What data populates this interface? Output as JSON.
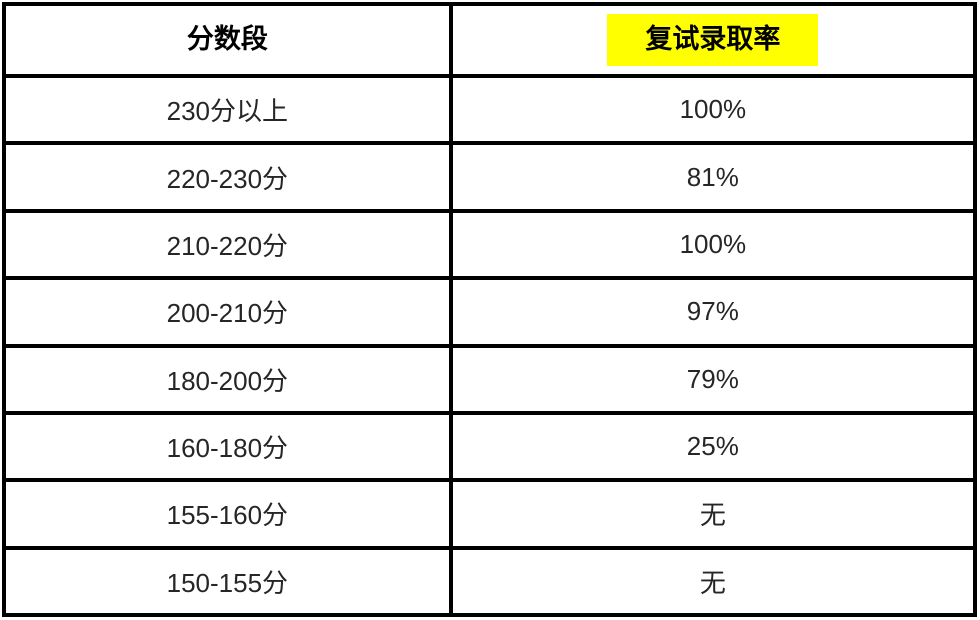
{
  "page": {
    "background": "#ffffff"
  },
  "table": {
    "columns": [
      {
        "key": "range",
        "label": "分数段",
        "highlight": false
      },
      {
        "key": "rate",
        "label": "复试录取率",
        "highlight": true
      }
    ],
    "rows": [
      [
        "230分以上",
        "100%"
      ],
      [
        "220-230分",
        "81%"
      ],
      [
        "210-220分",
        "100%"
      ],
      [
        "200-210分",
        "97%"
      ],
      [
        "180-200分",
        "79%"
      ],
      [
        "160-180分",
        "25%"
      ],
      [
        "155-160分",
        "无"
      ],
      [
        "150-155分",
        "无"
      ]
    ],
    "colors": {
      "border": "#000000",
      "body_text": "#262626",
      "header_text": "#000000",
      "highlight_bg": "#ffff00"
    }
  },
  "chart_data": {
    "type": "table",
    "columns": [
      "分数段",
      "复试录取率"
    ],
    "rows": [
      {
        "分数段": "230分以上",
        "复试录取率": "100%"
      },
      {
        "分数段": "220-230分",
        "复试录取率": "81%"
      },
      {
        "分数段": "210-220分",
        "复试录取率": "100%"
      },
      {
        "分数段": "200-210分",
        "复试录取率": "97%"
      },
      {
        "分数段": "180-200分",
        "复试录取率": "79%"
      },
      {
        "分数段": "160-180分",
        "复试录取率": "25%"
      },
      {
        "分数段": "155-160分",
        "复试录取率": "无"
      },
      {
        "分数段": "150-155分",
        "复试录取率": "无"
      }
    ],
    "numeric_rates_percent": [
      100,
      81,
      100,
      97,
      79,
      25,
      null,
      null
    ],
    "layout_hints": {
      "grid": "full black borders",
      "highlighted_header_cell": "复试录取率",
      "highlight_color": "#ffff00",
      "column_width_ratio": [
        0.46,
        0.54
      ]
    }
  }
}
